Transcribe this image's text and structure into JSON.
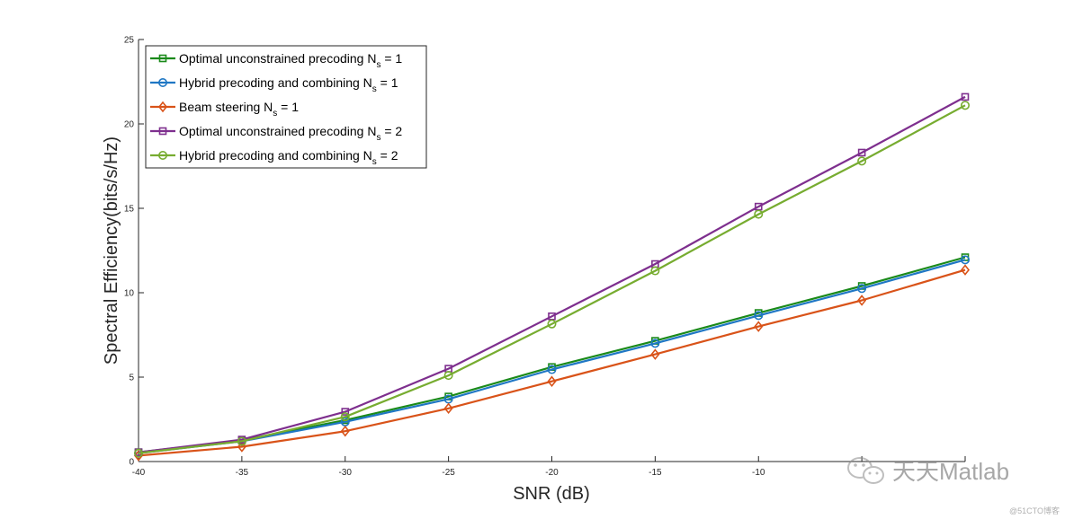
{
  "chart_data": {
    "type": "line",
    "xlabel": "SNR (dB)",
    "ylabel": "Spectral Efficiency(bits/s/Hz)",
    "xlim": [
      -40,
      0
    ],
    "ylim": [
      0,
      25
    ],
    "xticks": [
      -40,
      -35,
      -30,
      -25,
      -20,
      -15,
      -10,
      -5,
      0
    ],
    "xtick_labels": [
      "-40",
      "-35",
      "-30",
      "-25",
      "-20",
      "-15",
      "-10",
      "",
      ""
    ],
    "yticks": [
      0,
      5,
      10,
      15,
      20,
      25
    ],
    "ytick_labels": [
      "0",
      "5",
      "10",
      "15",
      "20",
      "25"
    ],
    "grid": false,
    "legend_position": "top-left",
    "x": [
      -40,
      -35,
      -30,
      -25,
      -20,
      -15,
      -10,
      -5,
      0
    ],
    "series": [
      {
        "legend_main": "Optimal unconstrained precoding N",
        "legend_sub": "s",
        "legend_tail": " = 1",
        "color": "#1a8a1a",
        "marker": "square",
        "values": [
          0.55,
          1.25,
          2.45,
          3.85,
          5.6,
          7.15,
          8.8,
          10.4,
          12.1
        ]
      },
      {
        "legend_main": "Hybrid precoding and combining N",
        "legend_sub": "s",
        "legend_tail": " = 1",
        "color": "#1f77c4",
        "marker": "circle",
        "values": [
          0.5,
          1.2,
          2.35,
          3.7,
          5.45,
          7.0,
          8.65,
          10.25,
          11.95
        ]
      },
      {
        "legend_main": "Beam steering N",
        "legend_sub": "s",
        "legend_tail": " = 1",
        "color": "#d95319",
        "marker": "diamond",
        "values": [
          0.35,
          0.88,
          1.8,
          3.15,
          4.75,
          6.35,
          8.0,
          9.55,
          11.35
        ]
      },
      {
        "legend_main": "Optimal unconstrained precoding N",
        "legend_sub": "s",
        "legend_tail": " = 2",
        "color": "#7e2f8e",
        "marker": "square",
        "values": [
          0.55,
          1.3,
          2.95,
          5.5,
          8.6,
          11.7,
          15.1,
          18.3,
          21.6
        ]
      },
      {
        "legend_main": "Hybrid precoding and combining N",
        "legend_sub": "s",
        "legend_tail": " = 2",
        "color": "#77ac30",
        "marker": "circle",
        "values": [
          0.5,
          1.2,
          2.65,
          5.1,
          8.15,
          11.3,
          14.65,
          17.8,
          21.1
        ]
      }
    ]
  },
  "watermark": {
    "text": "天天Matlab",
    "source": "@51CTO博客",
    "icon": "wechat-icon"
  }
}
